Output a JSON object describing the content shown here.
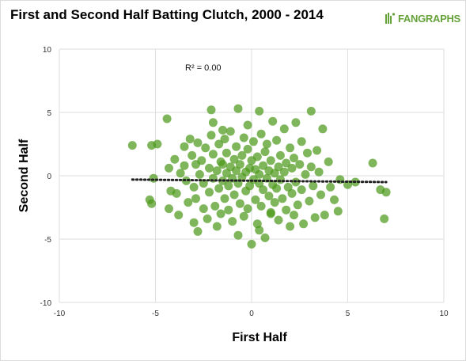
{
  "header": {
    "title": "First and Second Half Batting Clutch, 2000 - 2014",
    "logo_text": "FANGRAPHS"
  },
  "chart_data": {
    "type": "scatter",
    "title": "First and Second Half Batting Clutch, 2000 - 2014",
    "xlabel": "First Half",
    "ylabel": "Second Half",
    "xlim": [
      -10,
      10
    ],
    "ylim": [
      -10,
      10
    ],
    "xticks": [
      -10,
      -5,
      0,
      5,
      10
    ],
    "yticks": [
      -10,
      -5,
      0,
      5,
      10
    ],
    "grid": true,
    "annotation": "R² = 0.00",
    "trendline": {
      "x": [
        -6.2,
        7.0
      ],
      "y": [
        -0.3,
        -0.5
      ],
      "style": "dotted"
    },
    "marker_color": "#4d9a1c",
    "points": [
      [
        -6.2,
        2.4
      ],
      [
        -5.2,
        2.4
      ],
      [
        -4.9,
        2.5
      ],
      [
        -5.3,
        -1.9
      ],
      [
        -5.2,
        -2.2
      ],
      [
        -5.1,
        -0.2
      ],
      [
        -4.4,
        4.5
      ],
      [
        -4.3,
        0.6
      ],
      [
        -4.2,
        -1.2
      ],
      [
        -4.3,
        -2.6
      ],
      [
        -4.0,
        1.3
      ],
      [
        -3.9,
        -1.4
      ],
      [
        -3.8,
        -3.1
      ],
      [
        -3.7,
        0.2
      ],
      [
        -3.5,
        2.3
      ],
      [
        -3.5,
        0.8
      ],
      [
        -3.4,
        -0.4
      ],
      [
        -3.3,
        -2.1
      ],
      [
        -3.2,
        2.9
      ],
      [
        -3.1,
        1.6
      ],
      [
        -3.0,
        -0.9
      ],
      [
        -3.0,
        -3.7
      ],
      [
        -2.9,
        -1.8
      ],
      [
        -2.9,
        0.9
      ],
      [
        -2.8,
        2.6
      ],
      [
        -2.8,
        -4.4
      ],
      [
        -2.7,
        0.1
      ],
      [
        -2.6,
        1.2
      ],
      [
        -2.5,
        -2.6
      ],
      [
        -2.5,
        -0.6
      ],
      [
        -2.4,
        2.2
      ],
      [
        -2.3,
        -3.4
      ],
      [
        -2.2,
        0.6
      ],
      [
        -2.2,
        -1.3
      ],
      [
        -2.1,
        3.2
      ],
      [
        -2.0,
        -0.2
      ],
      [
        -2.0,
        1.7
      ],
      [
        -1.9,
        -2.4
      ],
      [
        -1.8,
        -4.0
      ],
      [
        -1.8,
        0.4
      ],
      [
        -1.7,
        2.5
      ],
      [
        -1.7,
        -1.0
      ],
      [
        -1.6,
        1.1
      ],
      [
        -1.6,
        -3.0
      ],
      [
        -1.5,
        -0.4
      ],
      [
        -1.5,
        0.9
      ],
      [
        -1.4,
        2.9
      ],
      [
        -1.4,
        -1.8
      ],
      [
        -1.3,
        0.2
      ],
      [
        -1.3,
        1.8
      ],
      [
        -1.2,
        -2.7
      ],
      [
        -1.2,
        -0.8
      ],
      [
        -1.1,
        0.7
      ],
      [
        -1.1,
        3.5
      ],
      [
        -1.0,
        -0.2
      ],
      [
        -1.0,
        -3.6
      ],
      [
        -0.9,
        1.3
      ],
      [
        -0.9,
        -1.5
      ],
      [
        -0.8,
        0.4
      ],
      [
        -0.8,
        2.3
      ],
      [
        -0.7,
        -0.6
      ],
      [
        -0.7,
        -4.7
      ],
      [
        -0.6,
        0.9
      ],
      [
        -0.6,
        -2.2
      ],
      [
        -0.5,
        1.6
      ],
      [
        -0.5,
        -0.1
      ],
      [
        -0.4,
        -3.2
      ],
      [
        -0.4,
        3.0
      ],
      [
        -0.3,
        0.3
      ],
      [
        -0.3,
        -1.2
      ],
      [
        -0.2,
        2.1
      ],
      [
        -0.2,
        -2.6
      ],
      [
        -0.1,
        0.6
      ],
      [
        -0.1,
        -0.8
      ],
      [
        0.0,
        1.2
      ],
      [
        0.0,
        -5.4
      ],
      [
        0.1,
        -0.3
      ],
      [
        0.1,
        2.7
      ],
      [
        0.2,
        -1.9
      ],
      [
        0.2,
        0.5
      ],
      [
        0.3,
        -3.8
      ],
      [
        0.3,
        1.5
      ],
      [
        0.4,
        -0.6
      ],
      [
        0.4,
        0.1
      ],
      [
        0.5,
        3.3
      ],
      [
        0.5,
        -2.4
      ],
      [
        0.6,
        0.8
      ],
      [
        0.6,
        -1.1
      ],
      [
        0.7,
        1.9
      ],
      [
        0.7,
        -4.9
      ],
      [
        0.8,
        -0.2
      ],
      [
        0.8,
        2.5
      ],
      [
        0.9,
        -1.6
      ],
      [
        0.9,
        0.4
      ],
      [
        1.0,
        -3.0
      ],
      [
        1.0,
        1.2
      ],
      [
        1.1,
        4.3
      ],
      [
        1.1,
        -0.7
      ],
      [
        1.2,
        0.2
      ],
      [
        1.2,
        -2.1
      ],
      [
        1.3,
        2.8
      ],
      [
        1.3,
        -1.0
      ],
      [
        1.4,
        0.7
      ],
      [
        1.4,
        -3.5
      ],
      [
        1.5,
        1.6
      ],
      [
        1.5,
        -0.3
      ],
      [
        1.6,
        -1.8
      ],
      [
        1.7,
        3.7
      ],
      [
        1.7,
        0.3
      ],
      [
        1.8,
        -2.7
      ],
      [
        1.8,
        1.0
      ],
      [
        1.9,
        -0.9
      ],
      [
        2.0,
        -4.0
      ],
      [
        2.0,
        2.2
      ],
      [
        2.1,
        -1.4
      ],
      [
        2.1,
        0.6
      ],
      [
        2.2,
        1.4
      ],
      [
        2.2,
        -3.1
      ],
      [
        2.3,
        4.2
      ],
      [
        2.3,
        -0.5
      ],
      [
        2.4,
        -2.3
      ],
      [
        2.5,
        0.9
      ],
      [
        2.6,
        2.7
      ],
      [
        2.6,
        -1.1
      ],
      [
        2.7,
        -3.8
      ],
      [
        2.8,
        0.1
      ],
      [
        2.9,
        1.8
      ],
      [
        3.0,
        -2.0
      ],
      [
        3.1,
        5.1
      ],
      [
        3.1,
        0.7
      ],
      [
        3.2,
        -0.8
      ],
      [
        3.3,
        -3.3
      ],
      [
        3.4,
        2.0
      ],
      [
        3.5,
        0.3
      ],
      [
        3.6,
        -1.5
      ],
      [
        3.7,
        3.7
      ],
      [
        3.8,
        -3.1
      ],
      [
        4.0,
        1.1
      ],
      [
        4.1,
        -0.9
      ],
      [
        4.3,
        -1.9
      ],
      [
        4.5,
        -2.8
      ],
      [
        4.6,
        -0.3
      ],
      [
        5.0,
        -0.7
      ],
      [
        5.4,
        -0.5
      ],
      [
        6.3,
        1.0
      ],
      [
        6.7,
        -1.1
      ],
      [
        6.9,
        -3.4
      ],
      [
        7.0,
        -1.3
      ],
      [
        1.0,
        -2.9
      ],
      [
        0.4,
        -4.3
      ],
      [
        -0.7,
        5.3
      ],
      [
        0.4,
        5.1
      ],
      [
        -2.1,
        5.2
      ],
      [
        -2.0,
        4.2
      ],
      [
        -1.5,
        3.6
      ],
      [
        -0.2,
        4.0
      ]
    ]
  }
}
